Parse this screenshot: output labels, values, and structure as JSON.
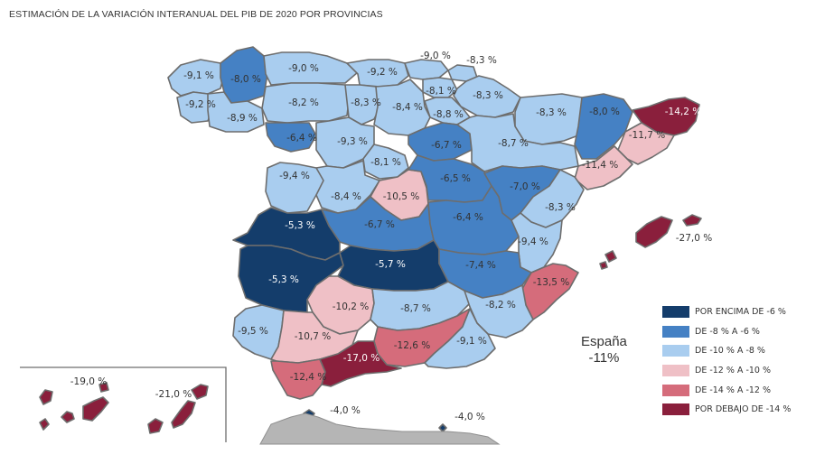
{
  "title": "ESTIMACIÓN DE LA VARIACIÓN INTERANUAL DEL PIB DE 2020 POR PROVINCIAS",
  "national": {
    "name": "España",
    "value": "-11%"
  },
  "colors": {
    "above_-6": "#143d6b",
    "-8_to_-6": "#4581c4",
    "-10_to_-8": "#a9cdef",
    "-12_to_-10": "#efc0c6",
    "-14_to_-12": "#d56c7b",
    "below_-14": "#8a1f3c",
    "other": "#b5b5b5"
  },
  "legend": [
    {
      "label": "POR ENCIMA DE -6 %",
      "color": "#143d6b"
    },
    {
      "label": "DE -8 % A -6 %",
      "color": "#4581c4"
    },
    {
      "label": "DE -10 % A -8 %",
      "color": "#a9cdef"
    },
    {
      "label": "DE -12 % A -10 %",
      "color": "#efc0c6"
    },
    {
      "label": "DE -14 % A -12 %",
      "color": "#d56c7b"
    },
    {
      "label": "POR DEBAJO DE -14 %",
      "color": "#8a1f3c"
    }
  ],
  "provinces": [
    {
      "name": "A Coruña",
      "value": -9.1,
      "label": "-9,1 %",
      "cls": "-10_to_-8"
    },
    {
      "name": "Lugo",
      "value": -8.0,
      "label": "-8,0 %",
      "cls": "-8_to_-6"
    },
    {
      "name": "Pontevedra",
      "value": -9.2,
      "label": "-9,2 %",
      "cls": "-10_to_-8"
    },
    {
      "name": "Ourense",
      "value": -8.9,
      "label": "-8,9 %",
      "cls": "-10_to_-8"
    },
    {
      "name": "Asturias",
      "value": -9.0,
      "label": "-9,0 %",
      "cls": "-10_to_-8"
    },
    {
      "name": "Cantabria",
      "value": -9.2,
      "label": "-9,2 %",
      "cls": "-10_to_-8"
    },
    {
      "name": "Bizkaia",
      "value": -9.0,
      "label": "-9,0 %",
      "cls": "-10_to_-8"
    },
    {
      "name": "Gipuzkoa",
      "value": -8.3,
      "label": "-8,3 %",
      "cls": "-10_to_-8"
    },
    {
      "name": "Araba/Álava",
      "value": -8.1,
      "label": "-8,1 %",
      "cls": "-10_to_-8"
    },
    {
      "name": "Navarra",
      "value": -8.3,
      "label": "-8,3 %",
      "cls": "-10_to_-8"
    },
    {
      "name": "La Rioja",
      "value": -8.8,
      "label": "-8,8 %",
      "cls": "-10_to_-8"
    },
    {
      "name": "León",
      "value": -8.2,
      "label": "-8,2 %",
      "cls": "-10_to_-8"
    },
    {
      "name": "Palencia",
      "value": -8.3,
      "label": "-8,3 %",
      "cls": "-10_to_-8"
    },
    {
      "name": "Burgos",
      "value": -8.4,
      "label": "-8,4 %",
      "cls": "-10_to_-8"
    },
    {
      "name": "Huesca",
      "value": -8.3,
      "label": "-8,3 %",
      "cls": "-10_to_-8"
    },
    {
      "name": "Lleida",
      "value": -8.0,
      "label": "-8,0 %",
      "cls": "-8_to_-6"
    },
    {
      "name": "Girona",
      "value": -14.2,
      "label": "-14,2 %",
      "cls": "below_-14"
    },
    {
      "name": "Barcelona",
      "value": -11.7,
      "label": "-11,7 %",
      "cls": "-12_to_-10"
    },
    {
      "name": "Tarragona",
      "value": -11.4,
      "label": "-11,4 %",
      "cls": "-12_to_-10"
    },
    {
      "name": "Zamora",
      "value": -6.4,
      "label": "-6,4 %",
      "cls": "-8_to_-6"
    },
    {
      "name": "Valladolid",
      "value": -9.3,
      "label": "-9,3 %",
      "cls": "-10_to_-8"
    },
    {
      "name": "Soria",
      "value": -6.7,
      "label": "-6,7 %",
      "cls": "-8_to_-6"
    },
    {
      "name": "Zaragoza",
      "value": -8.7,
      "label": "-8,7 %",
      "cls": "-10_to_-8"
    },
    {
      "name": "Salamanca",
      "value": -9.4,
      "label": "-9,4 %",
      "cls": "-10_to_-8"
    },
    {
      "name": "Segovia",
      "value": -8.1,
      "label": "-8,1 %",
      "cls": "-10_to_-8"
    },
    {
      "name": "Ávila",
      "value": -8.4,
      "label": "-8,4 %",
      "cls": "-10_to_-8"
    },
    {
      "name": "Madrid",
      "value": -10.5,
      "label": "-10,5 %",
      "cls": "-12_to_-10"
    },
    {
      "name": "Guadalajara",
      "value": -6.5,
      "label": "-6,5 %",
      "cls": "-8_to_-6"
    },
    {
      "name": "Teruel",
      "value": -7.0,
      "label": "-7,0 %",
      "cls": "-8_to_-6"
    },
    {
      "name": "Castellón",
      "value": -8.3,
      "label": "-8,3 %",
      "cls": "-10_to_-8"
    },
    {
      "name": "Cáceres",
      "value": -5.3,
      "label": "-5,3 %",
      "cls": "above_-6"
    },
    {
      "name": "Toledo",
      "value": -6.7,
      "label": "-6,7 %",
      "cls": "-8_to_-6"
    },
    {
      "name": "Cuenca",
      "value": -6.4,
      "label": "-6,4 %",
      "cls": "-8_to_-6"
    },
    {
      "name": "Valencia",
      "value": -9.4,
      "label": "-9,4 %",
      "cls": "-10_to_-8"
    },
    {
      "name": "Badajoz",
      "value": -5.3,
      "label": "-5,3 %",
      "cls": "above_-6"
    },
    {
      "name": "Ciudad Real",
      "value": -5.7,
      "label": "-5,7 %",
      "cls": "above_-6"
    },
    {
      "name": "Albacete",
      "value": -7.4,
      "label": "-7,4 %",
      "cls": "-8_to_-6"
    },
    {
      "name": "Alicante",
      "value": -13.5,
      "label": "-13,5 %",
      "cls": "-14_to_-12"
    },
    {
      "name": "Illes Balears",
      "value": -27.0,
      "label": "-27,0 %",
      "cls": "below_-14"
    },
    {
      "name": "Córdoba",
      "value": -10.2,
      "label": "-10,2 %",
      "cls": "-12_to_-10"
    },
    {
      "name": "Jaén",
      "value": -8.7,
      "label": "-8,7 %",
      "cls": "-10_to_-8"
    },
    {
      "name": "Murcia",
      "value": -8.2,
      "label": "-8,2 %",
      "cls": "-10_to_-8"
    },
    {
      "name": "Huelva",
      "value": -9.5,
      "label": "-9,5 %",
      "cls": "-10_to_-8"
    },
    {
      "name": "Sevilla",
      "value": -10.7,
      "label": "-10,7 %",
      "cls": "-12_to_-10"
    },
    {
      "name": "Granada",
      "value": -12.6,
      "label": "-12,6 %",
      "cls": "-14_to_-12"
    },
    {
      "name": "Almería",
      "value": -9.1,
      "label": "-9,1 %",
      "cls": "-10_to_-8"
    },
    {
      "name": "Cádiz",
      "value": -12.4,
      "label": "-12,4 %",
      "cls": "-14_to_-12"
    },
    {
      "name": "Málaga",
      "value": -17.0,
      "label": "-17,0 %",
      "cls": "below_-14"
    },
    {
      "name": "Santa Cruz de Tenerife",
      "value": -19.0,
      "label": "-19,0 %",
      "cls": "below_-14"
    },
    {
      "name": "Las Palmas",
      "value": -21.0,
      "label": "-21,0 %",
      "cls": "below_-14"
    },
    {
      "name": "Ceuta",
      "value": -4.0,
      "label": "-4,0 %",
      "cls": "above_-6"
    },
    {
      "name": "Melilla",
      "value": -4.0,
      "label": "-4,0 %",
      "cls": "above_-6"
    }
  ]
}
